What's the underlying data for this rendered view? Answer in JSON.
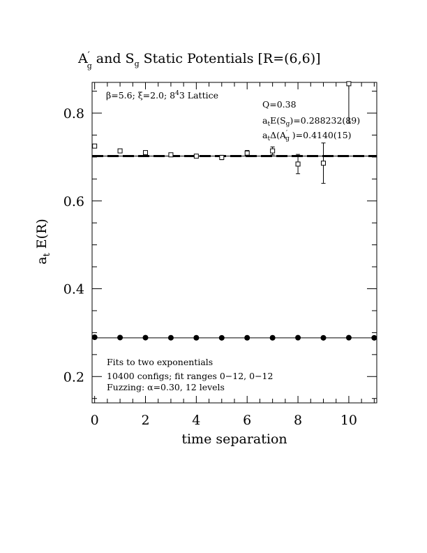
{
  "chart_data": {
    "type": "scatter",
    "title": "A′g and Sg Static Potentials [R=(6,6)]",
    "xlabel": "time separation",
    "ylabel": "at E(R)",
    "xlim": [
      -0.1,
      11.1
    ],
    "ylim": [
      0.14,
      0.87
    ],
    "x_ticks": [
      "0",
      "2",
      "4",
      "6",
      "8",
      "10"
    ],
    "y_ticks": [
      "0.2",
      "0.4",
      "0.6",
      "0.8"
    ],
    "series": [
      {
        "marker": "filled-circle",
        "x": [
          0,
          1,
          2,
          3,
          4,
          5,
          6,
          7,
          8,
          9,
          10,
          11
        ],
        "y": [
          0.2895,
          0.2888,
          0.2886,
          0.2884,
          0.2883,
          0.2882,
          0.2883,
          0.2883,
          0.2885,
          0.2882,
          0.2885,
          0.2882
        ],
        "err": [
          0.001,
          0.001,
          0.001,
          0.001,
          0.001,
          0.001,
          0.001,
          0.001,
          0.001,
          0.001,
          0.001,
          0.001
        ]
      },
      {
        "marker": "open-square",
        "x": [
          0,
          1,
          2,
          3,
          4,
          5,
          6,
          7,
          8,
          9,
          10
        ],
        "y": [
          0.725,
          0.714,
          0.71,
          0.705,
          0.702,
          0.699,
          0.709,
          0.714,
          0.684,
          0.686,
          0.867
        ],
        "err": [
          0.002,
          0.003,
          0.004,
          0.004,
          0.004,
          0.005,
          0.006,
          0.009,
          0.022,
          0.046,
          0.09
        ]
      }
    ],
    "fit_lines": [
      {
        "y": 0.2882,
        "style": "solid"
      },
      {
        "y": 0.7022,
        "style": "solid"
      },
      {
        "y": 0.7022,
        "style": "dashed"
      }
    ]
  },
  "annotations": {
    "lattice": "β=5.6; ξ=2.0; 8⁴3 Lattice",
    "q": "Q=0.38",
    "energy": "atE(Sg)=0.288232(89)",
    "gap": "atΔ(A′g)=0.4140(15)",
    "fits": "Fits to two exponentials",
    "configs": "10400 configs; fit ranges 0−12, 0−12",
    "fuzzing": "Fuzzing: α=0.30, 12 levels"
  }
}
